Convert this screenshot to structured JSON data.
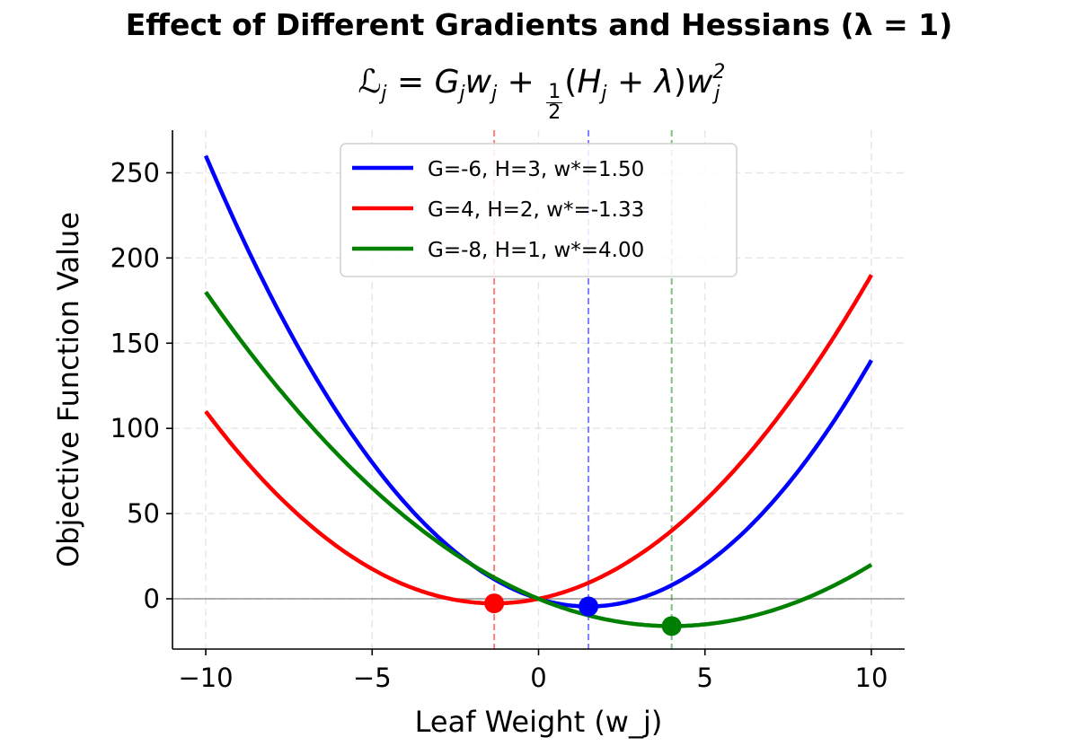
{
  "chart_data": {
    "type": "line",
    "title": "Effect of Different Gradients and Hessians (λ = 1)",
    "subtitle_parts": {
      "L": "ℒ",
      "j": "j",
      "eq": " = ",
      "G": "G",
      "w": "w",
      "plus": " + ",
      "num": "1",
      "den": "2",
      "open": "(",
      "H": "H",
      "plus2": " + ",
      "lambda": "λ",
      "close": ")",
      "sq": "2"
    },
    "xlabel": "Leaf Weight (w_j)",
    "ylabel": "Objective Function Value",
    "xlim": [
      -11,
      11
    ],
    "ylim": [
      -29.5,
      275
    ],
    "xticks": [
      -10,
      -5,
      0,
      5,
      10
    ],
    "xtick_labels": [
      "−10",
      "−5",
      "0",
      "5",
      "10"
    ],
    "yticks": [
      0,
      50,
      100,
      150,
      200,
      250
    ],
    "ytick_labels": [
      "0",
      "50",
      "100",
      "150",
      "200",
      "250"
    ],
    "grid": true,
    "legend_placement": "top-center",
    "lambda": 1,
    "x_range": [
      -10,
      10
    ],
    "series": [
      {
        "name": "G=-6, H=3, w*=1.50",
        "G": -6,
        "H": 3,
        "w_star": 1.5,
        "min_value": -4.5,
        "color": "#0000ff"
      },
      {
        "name": "G=4, H=2, w*=-1.33",
        "G": 4,
        "H": 2,
        "w_star": -1.333,
        "min_value": -2.667,
        "color": "#ff0000"
      },
      {
        "name": "G=-8, H=1, w*=4.00",
        "G": -8,
        "H": 1,
        "w_star": 4.0,
        "min_value": -16.0,
        "color": "#008000"
      }
    ]
  }
}
